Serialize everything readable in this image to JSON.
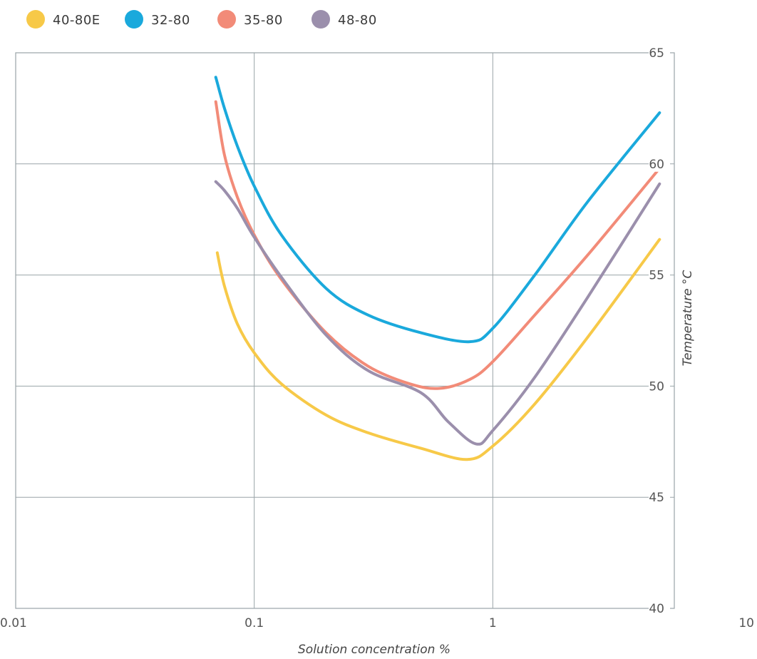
{
  "chart_data": {
    "type": "line",
    "xlabel": "Solution concentration %",
    "ylabel": "Temperature °C",
    "x_scale": "log",
    "xlim": [
      0.01,
      10
    ],
    "ylim": [
      40,
      65
    ],
    "x_ticks": [
      "0.01",
      "0.1",
      "1",
      "10"
    ],
    "y_ticks": [
      "40",
      "45",
      "50",
      "55",
      "60",
      "65"
    ],
    "legend_position": "top-left",
    "grid": true,
    "series": [
      {
        "name": "40-80E",
        "color": "#f7c948",
        "x": [
          0.07,
          0.075,
          0.085,
          0.1,
          0.13,
          0.2,
          0.3,
          0.5,
          0.78,
          1.0,
          1.5,
          2.5,
          5.0
        ],
        "y": [
          56.0,
          54.5,
          52.8,
          51.5,
          50.1,
          48.7,
          47.9,
          47.2,
          46.7,
          47.3,
          49.2,
          52.2,
          56.6
        ]
      },
      {
        "name": "32-80",
        "color": "#1aa9dc",
        "x": [
          0.069,
          0.075,
          0.085,
          0.1,
          0.13,
          0.2,
          0.3,
          0.5,
          0.8,
          1.0,
          1.5,
          2.5,
          5.0
        ],
        "y": [
          63.9,
          62.5,
          60.8,
          59.0,
          56.8,
          54.4,
          53.2,
          52.4,
          52.0,
          52.6,
          55.0,
          58.3,
          62.3
        ]
      },
      {
        "name": "35-80",
        "color": "#f28b78",
        "x": [
          0.069,
          0.075,
          0.085,
          0.1,
          0.13,
          0.2,
          0.3,
          0.45,
          0.6,
          0.8,
          1.0,
          1.5,
          2.5,
          5.0
        ],
        "y": [
          62.8,
          60.4,
          58.5,
          56.8,
          54.8,
          52.4,
          50.9,
          50.1,
          49.9,
          50.3,
          51.1,
          53.2,
          55.9,
          59.8
        ]
      },
      {
        "name": "48-80",
        "color": "#9b8fac",
        "x": [
          0.069,
          0.075,
          0.085,
          0.1,
          0.13,
          0.2,
          0.3,
          0.5,
          0.65,
          0.85,
          1.0,
          1.5,
          2.5,
          5.0
        ],
        "y": [
          59.2,
          58.8,
          58.0,
          56.7,
          54.9,
          52.3,
          50.7,
          49.7,
          48.4,
          47.4,
          48.0,
          50.4,
          54.0,
          59.1
        ]
      }
    ]
  }
}
